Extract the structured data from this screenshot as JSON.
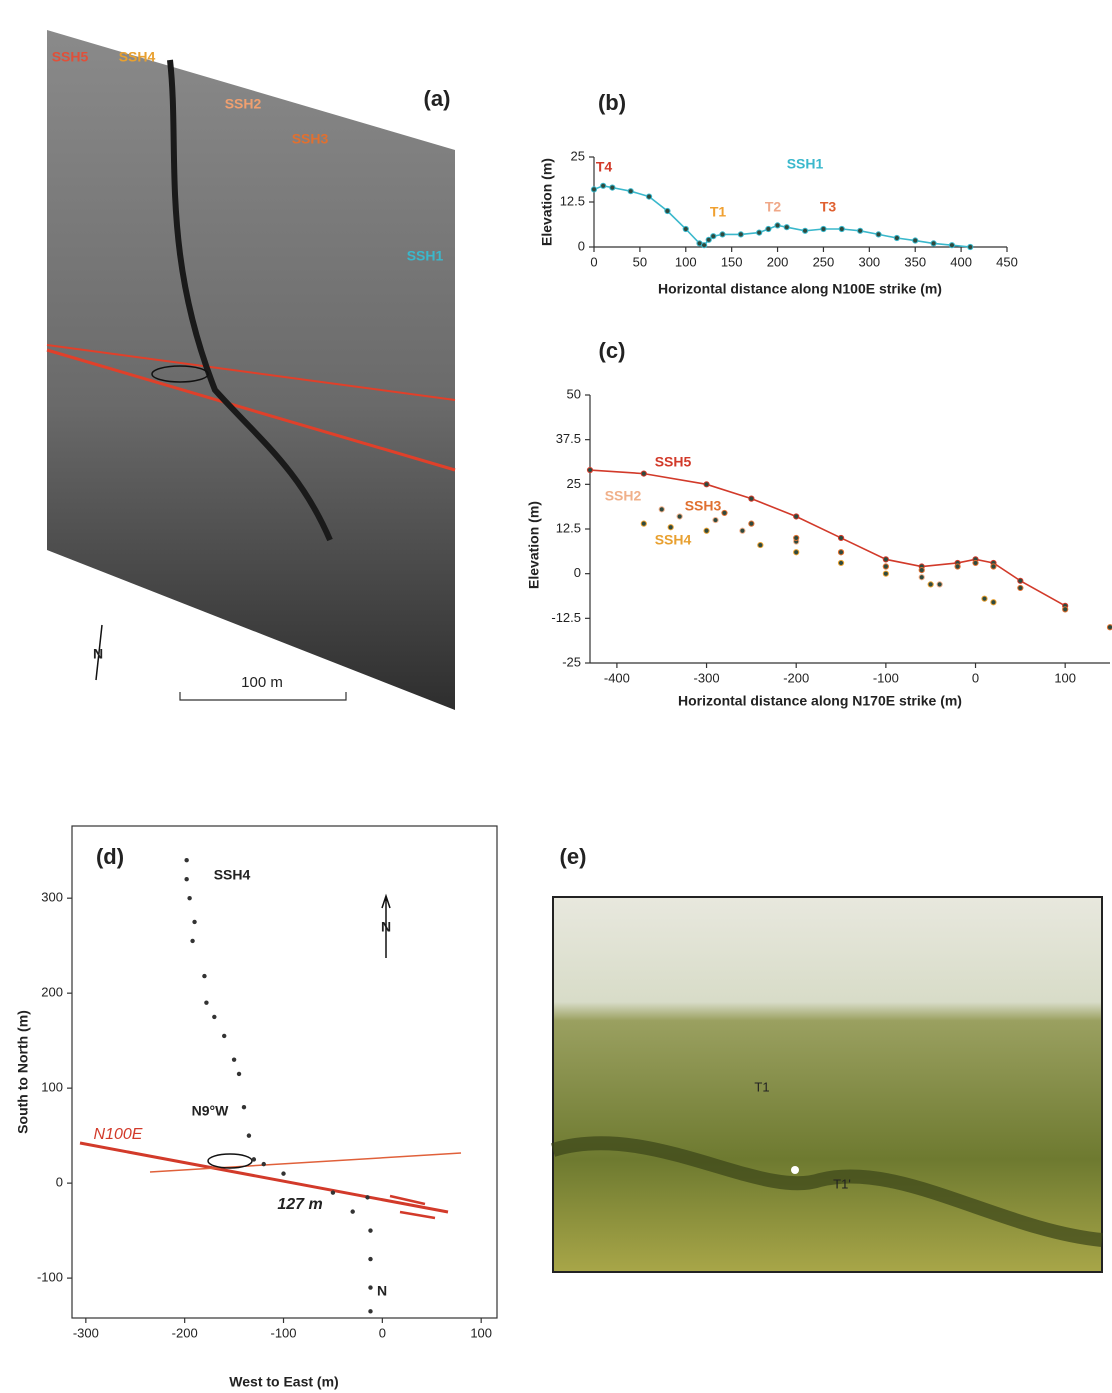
{
  "figure_a": {
    "label": "(a)",
    "profiles": [
      "SSH5",
      "SSH4",
      "SSH2",
      "SSH3",
      "SSH1"
    ],
    "scale_bar": "100 m",
    "north": "N"
  },
  "chart_data": [
    {
      "type": "line",
      "panel_label": "(b)",
      "xlabel": "Horizontal distance along N100E strike (m)",
      "ylabel": "Elevation (m)",
      "xlim": [
        0,
        450
      ],
      "xticks": [
        0,
        50,
        100,
        150,
        200,
        250,
        300,
        350,
        400,
        450
      ],
      "ylim": [
        0,
        25
      ],
      "yticks": [
        0,
        12.5,
        25
      ],
      "annotations": [
        {
          "text": "T4",
          "color": "#d23a2a"
        },
        {
          "text": "T1",
          "color": "#f0a030"
        },
        {
          "text": "T2",
          "color": "#f0a888"
        },
        {
          "text": "T3",
          "color": "#e06030"
        }
      ],
      "series": [
        {
          "name": "SSH1",
          "color": "#3ab8cc",
          "mode": "line",
          "x": [
            0,
            10,
            20,
            40,
            60,
            80,
            100,
            115,
            120,
            125,
            130,
            140,
            160,
            180,
            190,
            200,
            210,
            230,
            250,
            270,
            290,
            310,
            330,
            350,
            370,
            390,
            410
          ],
          "values": [
            16,
            17,
            16.5,
            15.5,
            14,
            10,
            5,
            1,
            0.5,
            2,
            3,
            3.5,
            3.5,
            4,
            5,
            6,
            5.5,
            4.5,
            5,
            5,
            4.5,
            3.5,
            2.5,
            1.8,
            1,
            0.5,
            0
          ]
        }
      ]
    },
    {
      "type": "line",
      "panel_label": "(c)",
      "xlabel": "Horizontal distance along N170E strike (m)",
      "ylabel": "Elevation (m)",
      "xlim": [
        -430,
        150
      ],
      "xticks": [
        -400,
        -300,
        -200,
        -100,
        0,
        100
      ],
      "ylim": [
        -25,
        50
      ],
      "yticks": [
        -25,
        -12.5,
        0,
        12.5,
        25,
        37.5,
        50
      ],
      "series": [
        {
          "name": "SSH5",
          "color": "#d23a2a",
          "mode": "line",
          "x": [
            -430,
            -370,
            -300,
            -250,
            -200,
            -150,
            -100,
            -60,
            -20,
            0,
            20,
            50,
            100
          ],
          "values": [
            29,
            28,
            25,
            21,
            16,
            10,
            4,
            2,
            3,
            4,
            3,
            -2,
            -9
          ]
        },
        {
          "name": "SSH2",
          "color": "#f0b08a",
          "mode": "markers",
          "x": [
            -350,
            -330,
            -290,
            -260,
            -200,
            -150,
            -100,
            -60,
            -40
          ],
          "values": [
            18,
            16,
            15,
            12,
            9,
            6,
            2,
            -1,
            -3
          ]
        },
        {
          "name": "SSH3",
          "color": "#e07030",
          "mode": "markers",
          "x": [
            -280,
            -250,
            -200,
            -150,
            -100,
            -60,
            -20,
            0,
            20,
            50,
            100,
            150
          ],
          "values": [
            17,
            14,
            10,
            6,
            2,
            1,
            2,
            3,
            2,
            -4,
            -10,
            -15
          ]
        },
        {
          "name": "SSH4",
          "color": "#e8a030",
          "mode": "markers",
          "x": [
            -370,
            -340,
            -300,
            -240,
            -200,
            -150,
            -100,
            -50,
            10,
            20
          ],
          "values": [
            14,
            13,
            12,
            8,
            6,
            3,
            0,
            -3,
            -7,
            -8
          ]
        }
      ]
    },
    {
      "type": "scatter",
      "panel_label": "(d)",
      "xlabel": "West to East (m)",
      "ylabel": "South to North (m)",
      "frame": true,
      "xlim": [
        -314,
        116
      ],
      "xticks": [
        -300,
        -200,
        -100,
        0,
        100
      ],
      "ylim": [
        -142,
        376
      ],
      "yticks": [
        -100,
        0,
        100,
        200,
        300
      ],
      "annotations": [
        {
          "text": "N9°W",
          "color": "#222"
        },
        {
          "text": "127 m",
          "color": "#222"
        },
        {
          "text": "N100E",
          "color": "#d23a2a"
        },
        {
          "text": "N",
          "color": "#222"
        },
        {
          "text": "N",
          "color": "#222"
        }
      ],
      "series": [
        {
          "name": "SSH4",
          "color": "#333333",
          "mode": "markers",
          "x": [
            -198,
            -198,
            -195,
            -190,
            -192,
            -180,
            -178,
            -170,
            -160,
            -150,
            -145,
            -140,
            -135,
            -130,
            -120,
            -100,
            -50,
            -30,
            -15,
            -12,
            -12,
            -12,
            -12
          ],
          "values": [
            340,
            320,
            300,
            275,
            255,
            218,
            190,
            175,
            155,
            130,
            115,
            80,
            50,
            25,
            20,
            10,
            -10,
            -30,
            -15,
            -50,
            -80,
            -110,
            -135
          ]
        }
      ]
    }
  ],
  "figure_e": {
    "label": "(e)",
    "terraces": [
      "T1",
      "T1'"
    ]
  }
}
